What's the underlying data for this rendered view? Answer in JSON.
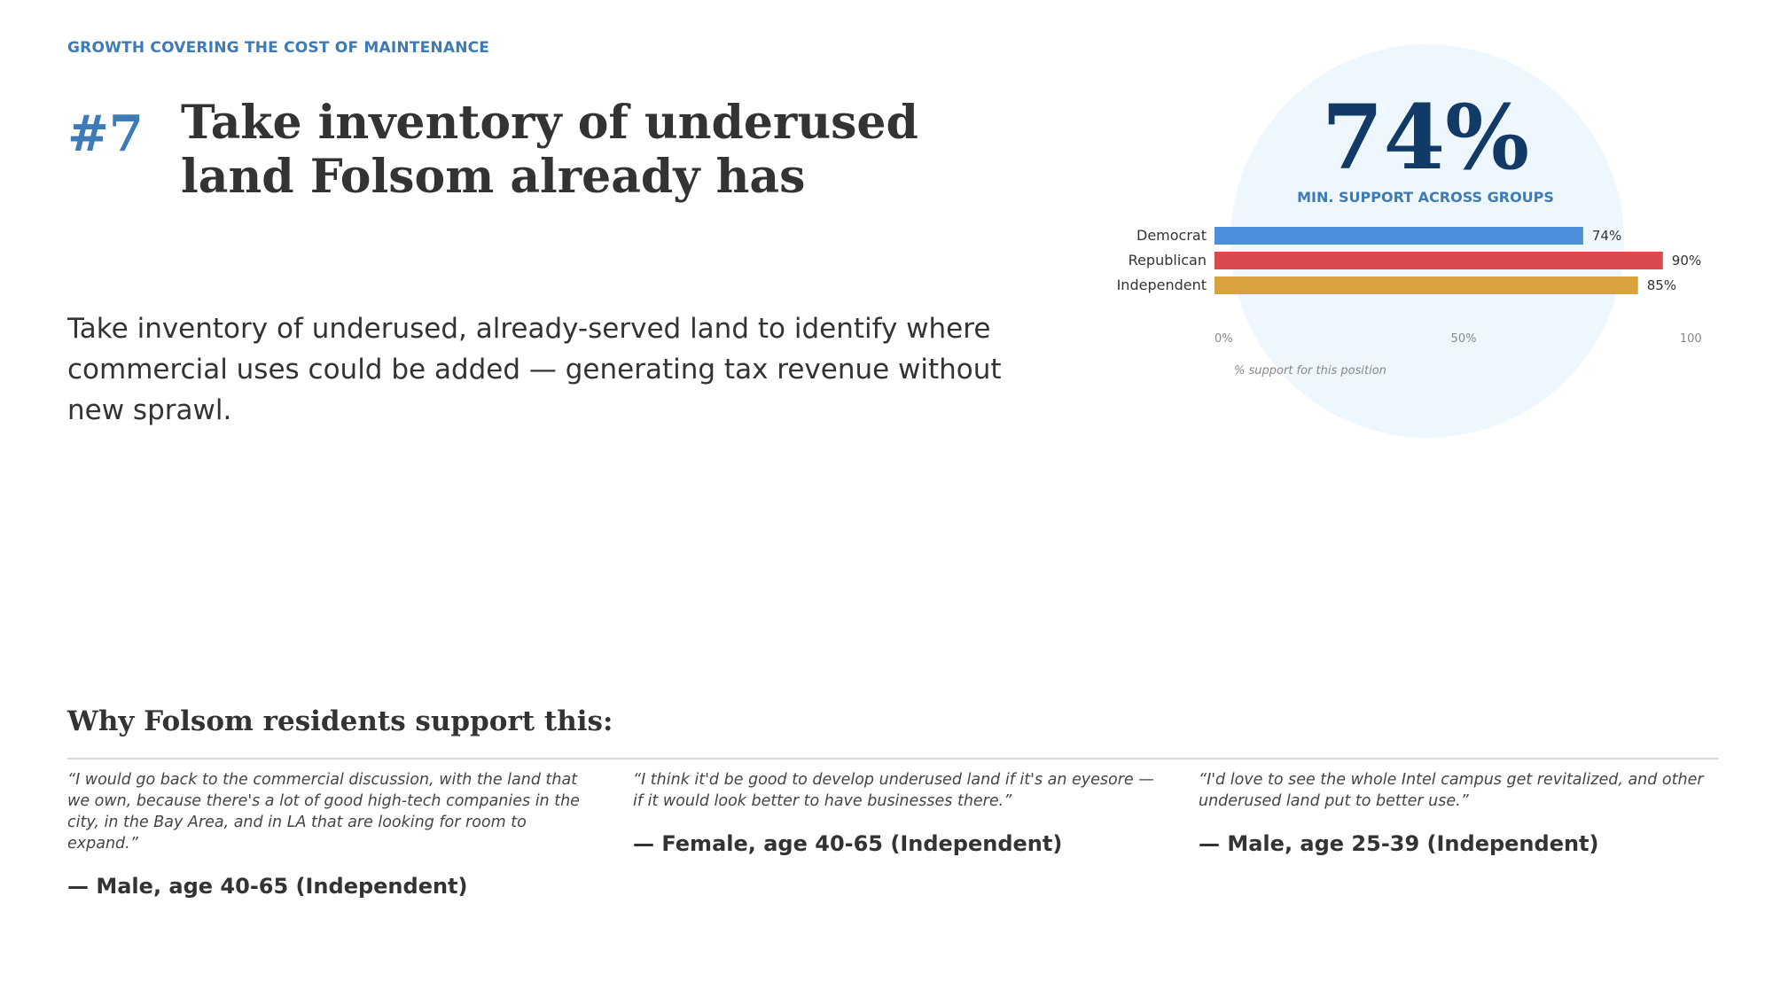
{
  "section": "GROWTH COVERING THE COST OF MAINTENANCE",
  "number": "#7",
  "headline": "Take inventory of underused land Folsom already has",
  "description": "Take inventory of underused, already-served land to identify where commercial uses could be added — generating tax revenue without new sprawl.",
  "stat": {
    "value": "74%",
    "caption": "MIN. SUPPORT ACROSS GROUPS"
  },
  "chart_data": {
    "type": "bar",
    "orientation": "horizontal",
    "categories": [
      "Democrat",
      "Republican",
      "Independent"
    ],
    "values": [
      74,
      90,
      85
    ],
    "value_labels": [
      "74%",
      "90%",
      "85%"
    ],
    "colors": [
      "#4a8fd8",
      "#d9494e",
      "#d9a23e"
    ],
    "xlim": [
      0,
      100
    ],
    "ticks": [
      0,
      50,
      100
    ],
    "tick_labels": [
      "0%",
      "50%",
      "100%"
    ],
    "xlabel": "% support for this position",
    "grid": false
  },
  "colors": {
    "accent": "#3d7ab8",
    "stat_dark": "#123a66",
    "circle_bg": "#eef7fd"
  },
  "support": {
    "heading": "Why Folsom residents support this:",
    "quotes": [
      {
        "text": "“I would go back to the commercial discussion, with the land that we own, because there's a lot of good high-tech companies in the city, in the Bay Area, and in LA that are looking for room to expand.”",
        "attribution": "— Male, age 40-65 (Independent)"
      },
      {
        "text": "“I think it'd be good to develop underused land if it's an eyesore — if it would look better to have businesses there.”",
        "attribution": "— Female, age 40-65 (Independent)"
      },
      {
        "text": "“I'd love to see the whole Intel campus get revitalized, and other underused land put to better use.”",
        "attribution": "— Male, age 25-39 (Independent)"
      }
    ]
  }
}
